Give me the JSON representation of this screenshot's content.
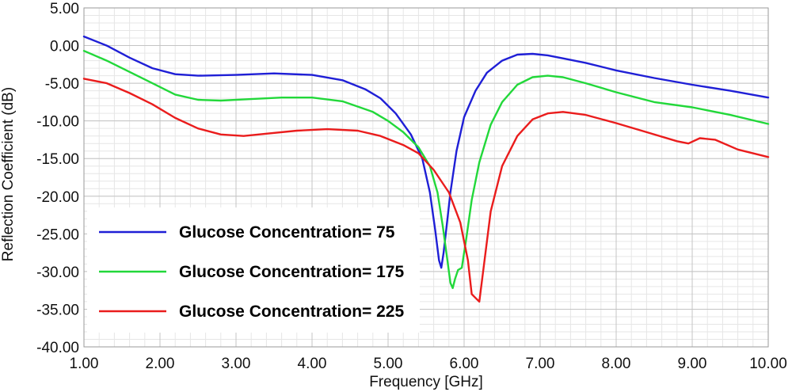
{
  "chart_data": {
    "type": "line",
    "title": "",
    "xlabel": "Frequency [GHz]",
    "ylabel": "Reflection Coefficient (dB)",
    "xlim": [
      1.0,
      10.0
    ],
    "ylim": [
      -40.0,
      5.0
    ],
    "x_ticks": [
      "1.00",
      "2.00",
      "3.00",
      "4.00",
      "5.00",
      "6.00",
      "7.00",
      "8.00",
      "9.00",
      "10.00"
    ],
    "y_ticks": [
      "5.00",
      "0.00",
      "-5.00",
      "-10.00",
      "-15.00",
      "-20.00",
      "-25.00",
      "-30.00",
      "-35.00",
      "-40.00"
    ],
    "grid": true,
    "legend_position": "bottom-left",
    "series": [
      {
        "name": "Glucose Concentration= 75",
        "color": "#1f1fd6",
        "x": [
          1.0,
          1.3,
          1.6,
          1.9,
          2.2,
          2.5,
          3.0,
          3.5,
          4.0,
          4.4,
          4.7,
          4.9,
          5.1,
          5.3,
          5.45,
          5.55,
          5.62,
          5.67,
          5.7,
          5.73,
          5.77,
          5.82,
          5.9,
          6.0,
          6.15,
          6.3,
          6.5,
          6.7,
          6.9,
          7.1,
          7.3,
          7.6,
          8.0,
          8.5,
          9.0,
          9.5,
          10.0
        ],
        "y": [
          1.2,
          0.0,
          -1.6,
          -3.0,
          -3.8,
          -4.0,
          -3.9,
          -3.7,
          -3.9,
          -4.6,
          -5.8,
          -7.0,
          -9.0,
          -11.8,
          -15.0,
          -19.5,
          -24.5,
          -28.5,
          -29.5,
          -27.5,
          -24.0,
          -19.5,
          -14.0,
          -9.5,
          -6.0,
          -3.6,
          -2.0,
          -1.2,
          -1.1,
          -1.3,
          -1.7,
          -2.3,
          -3.3,
          -4.3,
          -5.2,
          -6.0,
          -6.9
        ]
      },
      {
        "name": "Glucose Concentration= 175",
        "color": "#22d83a",
        "x": [
          1.0,
          1.3,
          1.6,
          1.9,
          2.2,
          2.5,
          2.8,
          3.2,
          3.6,
          4.0,
          4.4,
          4.8,
          5.0,
          5.2,
          5.4,
          5.55,
          5.65,
          5.72,
          5.78,
          5.82,
          5.85,
          5.88,
          5.92,
          5.97,
          6.03,
          6.1,
          6.2,
          6.35,
          6.5,
          6.7,
          6.9,
          7.1,
          7.3,
          7.6,
          8.0,
          8.5,
          9.0,
          9.5,
          10.0
        ],
        "y": [
          -0.7,
          -2.0,
          -3.5,
          -5.0,
          -6.5,
          -7.2,
          -7.3,
          -7.1,
          -6.9,
          -6.9,
          -7.4,
          -8.8,
          -10.0,
          -11.5,
          -13.5,
          -16.0,
          -19.5,
          -24.0,
          -28.5,
          -31.5,
          -32.2,
          -31.0,
          -29.8,
          -29.5,
          -25.5,
          -20.5,
          -15.5,
          -10.5,
          -7.5,
          -5.2,
          -4.2,
          -4.0,
          -4.2,
          -5.0,
          -6.2,
          -7.5,
          -8.2,
          -9.2,
          -10.4
        ]
      },
      {
        "name": "Glucose Concentration= 225",
        "color": "#ea1c1c",
        "x": [
          1.0,
          1.3,
          1.6,
          1.9,
          2.2,
          2.5,
          2.8,
          3.1,
          3.4,
          3.8,
          4.2,
          4.6,
          4.9,
          5.2,
          5.4,
          5.6,
          5.8,
          5.95,
          6.05,
          6.1,
          6.15,
          6.2,
          6.25,
          6.35,
          6.5,
          6.7,
          6.9,
          7.1,
          7.3,
          7.6,
          8.0,
          8.4,
          8.8,
          8.95,
          9.1,
          9.3,
          9.6,
          10.0
        ],
        "y": [
          -4.4,
          -5.0,
          -6.3,
          -7.8,
          -9.6,
          -11.0,
          -11.8,
          -12.0,
          -11.7,
          -11.3,
          -11.1,
          -11.3,
          -12.0,
          -13.2,
          -14.3,
          -16.5,
          -19.5,
          -23.5,
          -28.5,
          -33.0,
          -33.5,
          -34.0,
          -30.0,
          -22.0,
          -16.0,
          -12.0,
          -9.8,
          -9.0,
          -8.8,
          -9.2,
          -10.3,
          -11.5,
          -12.7,
          -13.0,
          -12.3,
          -12.5,
          -13.8,
          -14.8
        ]
      }
    ]
  }
}
